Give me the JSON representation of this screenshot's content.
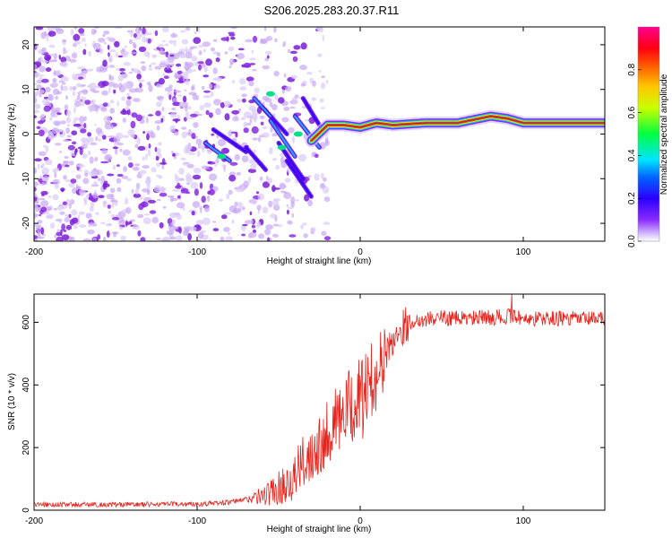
{
  "figure_title": "S206.2025.283.20.37.R11",
  "colors": {
    "snr_line": "#e8231c",
    "frame": "#000000",
    "centre_line": "#1e2bd6"
  },
  "chart_data": [
    {
      "type": "heatmap",
      "title": "S206.2025.283.20.37.R11",
      "xlabel": "Height of straight line (km)",
      "ylabel": "Frequency (Hz)",
      "xlim": [
        -200,
        150
      ],
      "ylim": [
        -24,
        24
      ],
      "xticks": [
        -200,
        -100,
        0,
        100
      ],
      "xtick_labels": [
        "-200",
        "-100",
        "0",
        "100"
      ],
      "yticks": [
        -20,
        -10,
        0,
        10,
        20
      ],
      "ytick_labels": [
        "-20",
        "-10",
        "0",
        "10",
        "20"
      ],
      "colorscale": "rainbow (violet = 0, red = 0.9, magenta = 1)",
      "colorbar": {
        "label": "Normalized spectral amplitude",
        "range": [
          0,
          1
        ],
        "ticks": [
          0.0,
          0.2,
          0.4,
          0.6,
          0.8
        ],
        "tick_labels": [
          "0.0",
          "0.2",
          "0.4",
          "0.6",
          "0.8"
        ]
      },
      "ridge": {
        "description": "dominant frequency line",
        "x": [
          -30,
          -20,
          -10,
          0,
          10,
          20,
          40,
          60,
          80,
          90,
          100,
          120,
          150
        ],
        "frequency_hz": [
          -1.5,
          2.0,
          2.0,
          1.5,
          2.5,
          2.0,
          2.5,
          2.5,
          4.0,
          3.5,
          2.5,
          2.5,
          2.5
        ]
      },
      "noise_region": {
        "x_range": [
          -200,
          -20
        ],
        "frequency_range": [
          -24,
          24
        ]
      }
    },
    {
      "type": "line",
      "xlabel": "Height of straight line (km)",
      "ylabel": "SNR (10 * v/v)",
      "xlim": [
        -200,
        150
      ],
      "ylim": [
        0,
        690
      ],
      "xticks": [
        -200,
        -100,
        0,
        100
      ],
      "xtick_labels": [
        "-200",
        "-100",
        "0",
        "100"
      ],
      "yticks": [
        0,
        200,
        400,
        600
      ],
      "ytick_labels": [
        "0",
        "200",
        "400",
        "600"
      ],
      "series": [
        {
          "name": "SNR",
          "x": [
            -200,
            -150,
            -100,
            -80,
            -70,
            -60,
            -50,
            -40,
            -30,
            -20,
            -15,
            -10,
            -5,
            0,
            5,
            10,
            15,
            20,
            25,
            30,
            40,
            50,
            60,
            80,
            95,
            100,
            120,
            150
          ],
          "y": [
            18,
            18,
            20,
            25,
            35,
            45,
            70,
            110,
            190,
            250,
            285,
            300,
            335,
            350,
            390,
            440,
            490,
            545,
            580,
            600,
            610,
            615,
            612,
            615,
            620,
            612,
            612,
            610
          ]
        }
      ]
    }
  ]
}
